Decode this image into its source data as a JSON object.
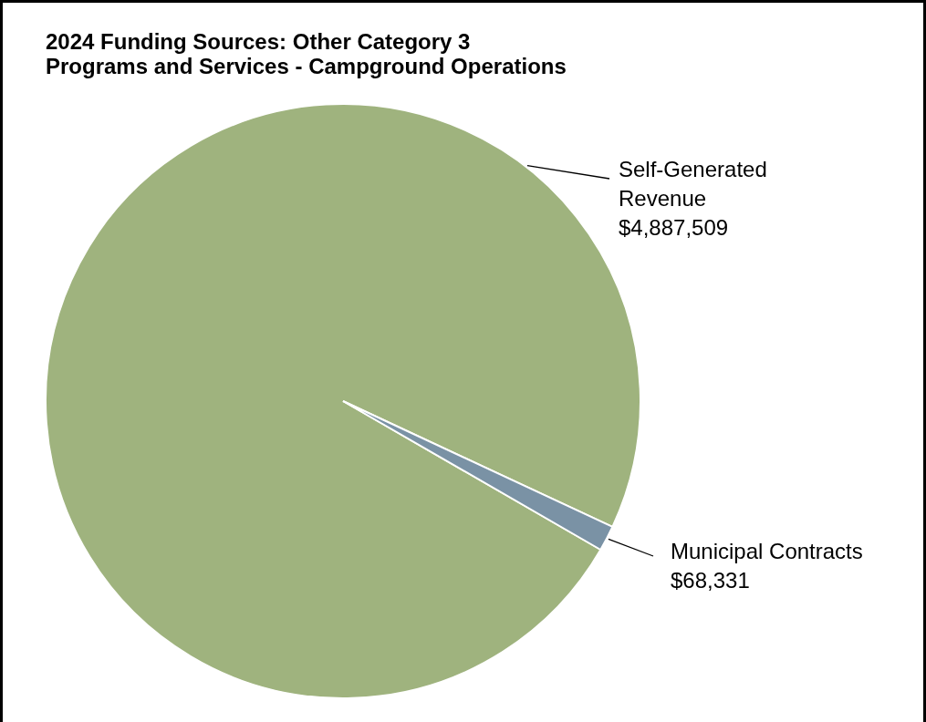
{
  "chart_data": {
    "type": "pie",
    "title": "2024 Funding Sources: Other Category 3\nPrograms and Services - Campground Operations",
    "categories": [
      "Self-Generated Revenue",
      "Municipal Contracts"
    ],
    "values": [
      4887509,
      68331
    ],
    "colors": [
      "#9fb37e",
      "#7a92a5"
    ],
    "value_labels": [
      "$4,887,509",
      "$68,331"
    ]
  }
}
